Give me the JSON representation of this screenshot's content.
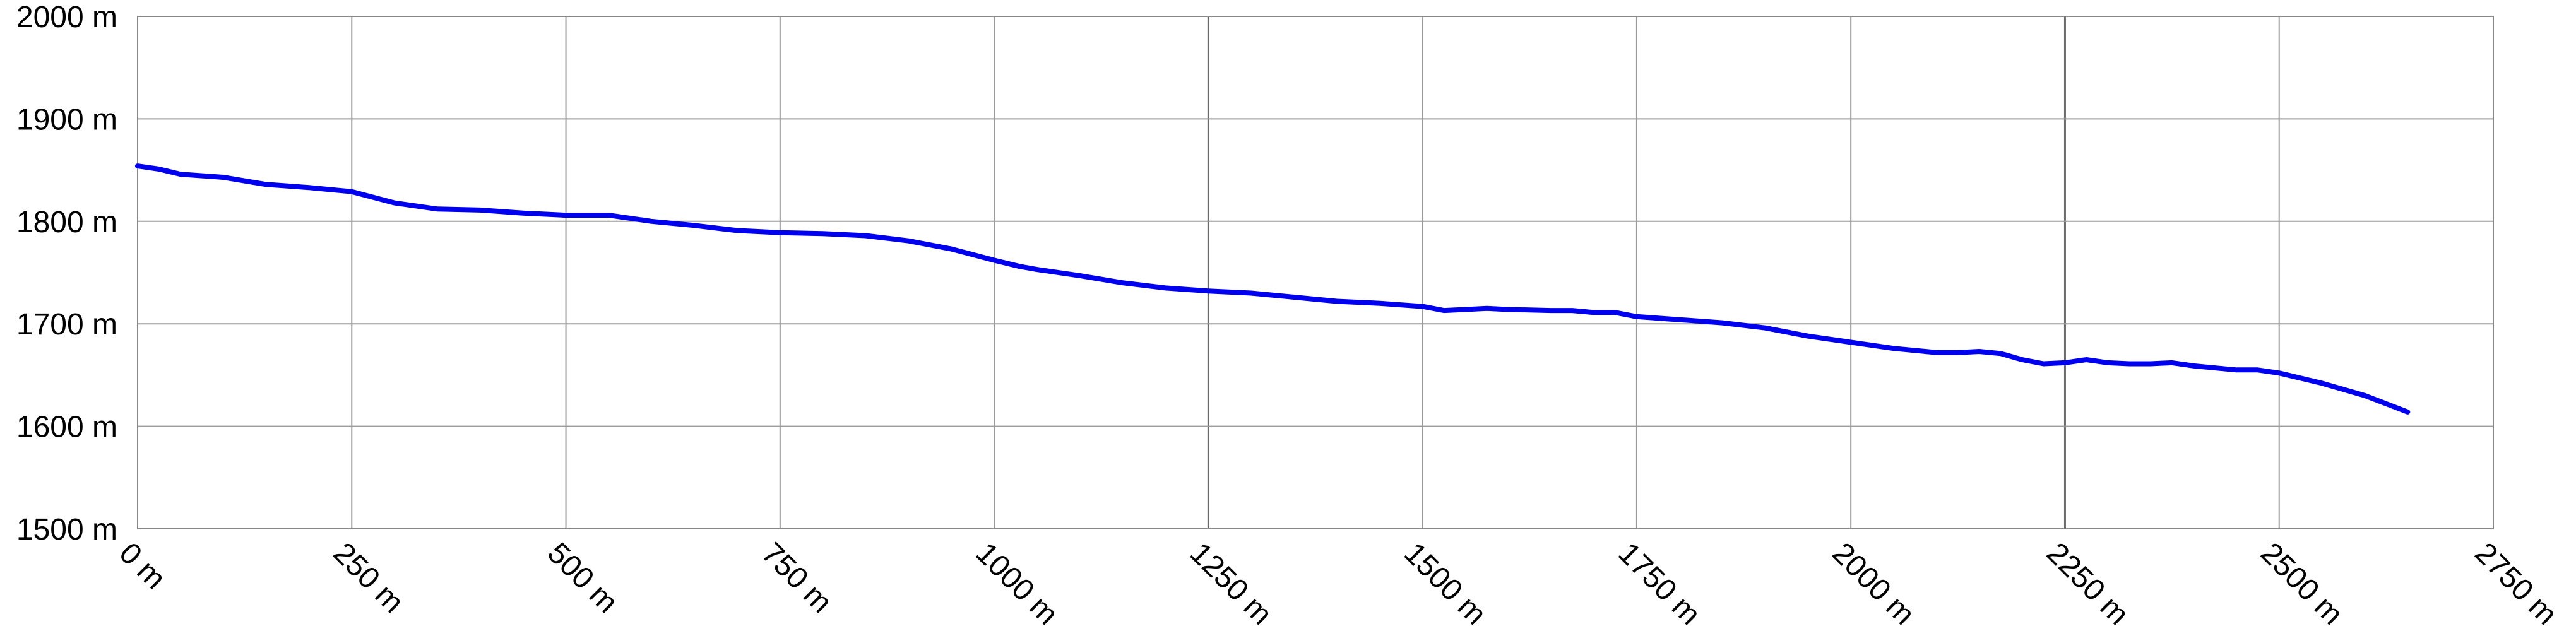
{
  "chart_data": {
    "type": "line",
    "title": "",
    "xlabel": "",
    "ylabel": "",
    "xlim": [
      0,
      2750
    ],
    "ylim": [
      1500,
      2000
    ],
    "x_ticks": [
      0,
      250,
      500,
      750,
      1000,
      1250,
      1500,
      1750,
      2000,
      2250,
      2500,
      2750
    ],
    "y_ticks": [
      1500,
      1600,
      1700,
      1800,
      1900,
      2000
    ],
    "x_tick_labels": [
      "0 m",
      "250 m",
      "500 m",
      "750 m",
      "1000 m",
      "1250 m",
      "1500 m",
      "1750 m",
      "2000 m",
      "2250 m",
      "2500 m",
      "2750 m"
    ],
    "y_tick_labels": [
      "1500 m",
      "1600 m",
      "1700 m",
      "1800 m",
      "1900 m",
      "2000 m"
    ],
    "grid": true,
    "legend": "none",
    "series": [
      {
        "color": "#0000ee",
        "x": [
          0,
          25,
          50,
          100,
          150,
          200,
          250,
          300,
          350,
          400,
          450,
          500,
          550,
          600,
          650,
          700,
          750,
          800,
          850,
          900,
          950,
          1000,
          1030,
          1050,
          1100,
          1150,
          1200,
          1250,
          1300,
          1350,
          1400,
          1450,
          1500,
          1525,
          1550,
          1575,
          1600,
          1650,
          1675,
          1700,
          1725,
          1750,
          1800,
          1850,
          1900,
          1950,
          2000,
          2050,
          2100,
          2125,
          2150,
          2175,
          2200,
          2225,
          2250,
          2275,
          2300,
          2325,
          2350,
          2375,
          2400,
          2450,
          2475,
          2500,
          2550,
          2600,
          2650
        ],
        "values": [
          1854,
          1851,
          1846,
          1843,
          1836,
          1833,
          1829,
          1818,
          1812,
          1811,
          1808,
          1806,
          1806,
          1800,
          1796,
          1791,
          1789,
          1788,
          1786,
          1781,
          1773,
          1762,
          1756,
          1753,
          1747,
          1740,
          1735,
          1732,
          1730,
          1726,
          1722,
          1720,
          1717,
          1713,
          1714,
          1715,
          1714,
          1713,
          1713,
          1711,
          1711,
          1707,
          1704,
          1701,
          1696,
          1688,
          1682,
          1676,
          1672,
          1672,
          1673,
          1671,
          1665,
          1661,
          1662,
          1665,
          1662,
          1661,
          1661,
          1662,
          1659,
          1655,
          1655,
          1652,
          1642,
          1630,
          1614
        ]
      }
    ]
  }
}
